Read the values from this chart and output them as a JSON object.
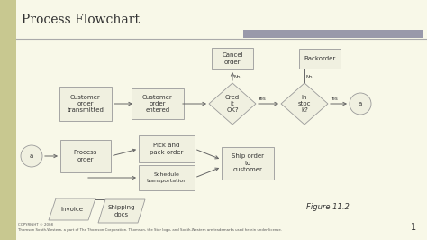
{
  "title": "Process Flowchart",
  "bg_color": "#f8f8e8",
  "box_facecolor": "#f0f0e0",
  "box_edgecolor": "#999999",
  "arrow_color": "#666666",
  "text_color": "#333333",
  "title_color": "#333333",
  "header_bar_color": "#9999aa",
  "figure_label": "Figure 11.2",
  "copyright_text": "COPYRIGHT © 2008\nThomson South-Western, a part of The Thomson Corporation. Thomson, the Star logo, and South-Western are trademarks used herein under license.",
  "page_number": "1",
  "left_bar_color": "#c8c890",
  "sep_line_color": "#aaaaaa"
}
